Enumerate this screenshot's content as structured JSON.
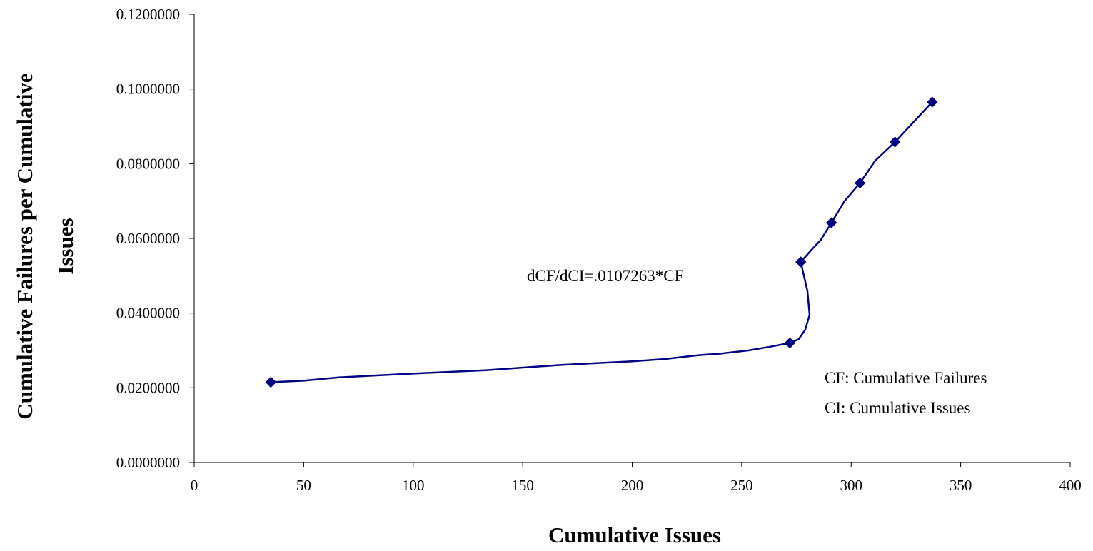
{
  "chart_data": {
    "type": "scatter",
    "title": "",
    "xlabel": "Cumulative Issues",
    "ylabel_lines": [
      "Cumulative Failures per Cumulative",
      "Issues"
    ],
    "xlim": [
      0,
      400
    ],
    "ylim": [
      0,
      0.12
    ],
    "x_ticks": [
      "0",
      "50",
      "100",
      "150",
      "200",
      "250",
      "300",
      "350",
      "400"
    ],
    "y_ticks": [
      "0.0000000",
      "0.0200000",
      "0.0400000",
      "0.0600000",
      "0.0800000",
      "0.1000000",
      "0.1200000"
    ],
    "grid": false,
    "legend": "none",
    "series": [
      {
        "color": "#000080",
        "marker": "diamond",
        "line": "smoothed",
        "points": [
          {
            "x": 35,
            "y": 0.0215
          },
          {
            "x": 272,
            "y": 0.032
          },
          {
            "x": 277,
            "y": 0.0537
          },
          {
            "x": 291,
            "y": 0.0642
          },
          {
            "x": 304,
            "y": 0.0748
          },
          {
            "x": 320,
            "y": 0.0858
          },
          {
            "x": 337,
            "y": 0.0965
          }
        ],
        "curve": [
          {
            "x": 35,
            "y": 0.0215
          },
          {
            "x": 50,
            "y": 0.0219
          },
          {
            "x": 66,
            "y": 0.0228
          },
          {
            "x": 100,
            "y": 0.0238
          },
          {
            "x": 133,
            "y": 0.0247
          },
          {
            "x": 167,
            "y": 0.0261
          },
          {
            "x": 200,
            "y": 0.0271
          },
          {
            "x": 215,
            "y": 0.0277
          },
          {
            "x": 230,
            "y": 0.0287
          },
          {
            "x": 241,
            "y": 0.0292
          },
          {
            "x": 253,
            "y": 0.03
          },
          {
            "x": 263,
            "y": 0.031
          },
          {
            "x": 272,
            "y": 0.032
          },
          {
            "x": 276,
            "y": 0.033
          },
          {
            "x": 279,
            "y": 0.0355
          },
          {
            "x": 281,
            "y": 0.0395
          },
          {
            "x": 280,
            "y": 0.046
          },
          {
            "x": 278,
            "y": 0.051
          },
          {
            "x": 277,
            "y": 0.0537
          },
          {
            "x": 282,
            "y": 0.057
          },
          {
            "x": 286,
            "y": 0.0595
          },
          {
            "x": 291,
            "y": 0.0642
          },
          {
            "x": 297,
            "y": 0.07
          },
          {
            "x": 304,
            "y": 0.0748
          },
          {
            "x": 311,
            "y": 0.0808
          },
          {
            "x": 320,
            "y": 0.0858
          },
          {
            "x": 337,
            "y": 0.0965
          }
        ]
      }
    ],
    "annotations": [
      "dCF/dCI=.0107263*CF",
      "CF: Cumulative Failures",
      "CI: Cumulative Issues"
    ]
  }
}
